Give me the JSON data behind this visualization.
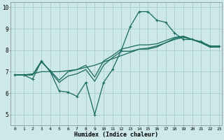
{
  "xlabel": "Humidex (Indice chaleur)",
  "ylabel": "",
  "xlim": [
    -0.5,
    23.3
  ],
  "ylim": [
    4.5,
    10.25
  ],
  "xticks": [
    0,
    1,
    2,
    3,
    4,
    5,
    6,
    7,
    8,
    9,
    10,
    11,
    12,
    13,
    14,
    15,
    16,
    17,
    18,
    19,
    20,
    21,
    22,
    23
  ],
  "yticks": [
    5,
    6,
    7,
    8,
    9,
    10
  ],
  "background_color": "#cce8e8",
  "grid_color": "#aacccc",
  "line_color": "#1a6b60",
  "lines": [
    {
      "x": [
        0,
        1,
        2,
        3,
        4,
        5,
        6,
        7,
        8,
        9,
        10,
        11,
        12,
        13,
        14,
        15,
        16,
        17,
        18,
        19,
        20,
        21,
        22,
        23
      ],
      "y": [
        6.85,
        6.85,
        6.65,
        7.5,
        7.0,
        6.1,
        6.05,
        5.85,
        6.5,
        5.0,
        6.5,
        7.1,
        8.0,
        9.1,
        9.8,
        9.8,
        9.4,
        9.3,
        8.8,
        8.5,
        8.5,
        8.4,
        8.2,
        8.2
      ],
      "marker": true,
      "lw": 0.9
    },
    {
      "x": [
        0,
        1,
        2,
        3,
        4,
        5,
        6,
        7,
        8,
        9,
        10,
        11,
        12,
        13,
        14,
        15,
        16,
        17,
        18,
        19,
        20,
        21,
        22,
        23
      ],
      "y": [
        6.85,
        6.85,
        6.85,
        7.5,
        7.0,
        6.5,
        6.8,
        6.9,
        7.1,
        6.55,
        7.3,
        7.65,
        7.95,
        7.95,
        8.05,
        8.05,
        8.15,
        8.35,
        8.55,
        8.65,
        8.5,
        8.35,
        8.15,
        8.15
      ],
      "marker": false,
      "lw": 0.9
    },
    {
      "x": [
        0,
        1,
        2,
        3,
        4,
        5,
        6,
        7,
        8,
        9,
        10,
        11,
        12,
        13,
        14,
        15,
        16,
        17,
        18,
        19,
        20,
        21,
        22,
        23
      ],
      "y": [
        6.85,
        6.85,
        6.85,
        7.45,
        7.05,
        6.6,
        7.0,
        7.1,
        7.3,
        6.75,
        7.5,
        7.75,
        8.05,
        8.15,
        8.25,
        8.25,
        8.3,
        8.45,
        8.6,
        8.65,
        8.5,
        8.35,
        8.15,
        8.15
      ],
      "marker": false,
      "lw": 0.9
    },
    {
      "x": [
        0,
        1,
        2,
        3,
        4,
        5,
        6,
        7,
        8,
        9,
        10,
        11,
        12,
        13,
        14,
        15,
        16,
        17,
        18,
        19,
        20,
        21,
        22,
        23
      ],
      "y": [
        6.85,
        6.85,
        6.9,
        7.0,
        7.0,
        7.0,
        7.05,
        7.1,
        7.2,
        7.3,
        7.45,
        7.6,
        7.75,
        7.9,
        8.05,
        8.1,
        8.2,
        8.35,
        8.5,
        8.6,
        8.5,
        8.35,
        8.15,
        8.15
      ],
      "marker": false,
      "lw": 0.9
    }
  ]
}
